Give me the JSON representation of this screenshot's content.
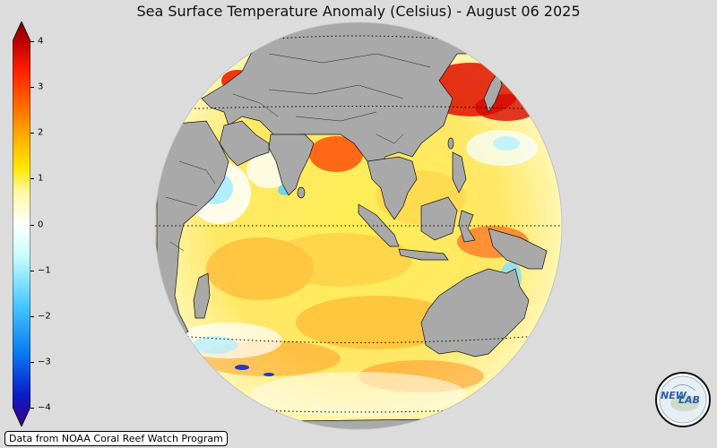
{
  "title": "Sea Surface Temperature Anomaly (Celsius) - August 06 2025",
  "colorbar": {
    "min": -4,
    "max": 4,
    "ticks": [
      {
        "value": 4,
        "label": "4"
      },
      {
        "value": 3,
        "label": "3"
      },
      {
        "value": 2,
        "label": "2"
      },
      {
        "value": 1,
        "label": "1"
      },
      {
        "value": 0,
        "label": "0"
      },
      {
        "value": -1,
        "label": "−1"
      },
      {
        "value": -2,
        "label": "−2"
      },
      {
        "value": -3,
        "label": "−3"
      },
      {
        "value": -4,
        "label": "−4"
      }
    ],
    "colors": [
      "#3b0082",
      "#0a1ec8",
      "#0a78f0",
      "#46c8ff",
      "#c8fcff",
      "#ffffff",
      "#fff9a0",
      "#ffe600",
      "#ffaa00",
      "#ff6400",
      "#ff1e00",
      "#be0000",
      "#7a0000"
    ]
  },
  "colors": {
    "background": "#dcdcdc",
    "land": "#a9a9a9",
    "ocean_base": "#fff48a"
  },
  "source": "Data from NOAA Coral Reef Watch Program",
  "logo": {
    "text_line1": "NEW",
    "text_line2": "LAB"
  }
}
